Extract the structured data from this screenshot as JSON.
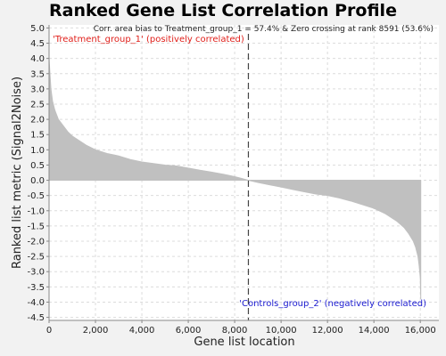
{
  "chart_data": {
    "type": "area",
    "title": "Ranked Gene List Correlation Profile",
    "xlabel": "Gene list location",
    "ylabel": "Ranked list metric (Signal2Noise)",
    "xlim": [
      0,
      16800
    ],
    "ylim": [
      -4.6,
      5.1
    ],
    "x_ticks": [
      0,
      2000,
      4000,
      6000,
      8000,
      10000,
      12000,
      14000,
      16000
    ],
    "x_tick_labels": [
      "0",
      "2,000",
      "4,000",
      "6,000",
      "8,000",
      "10,000",
      "12,000",
      "14,000",
      "16,000"
    ],
    "y_ticks": [
      5.0,
      4.5,
      4.0,
      3.5,
      3.0,
      2.5,
      2.0,
      1.5,
      1.0,
      0.5,
      0.0,
      -0.5,
      -1.0,
      -1.5,
      -2.0,
      -2.5,
      -3.0,
      -3.5,
      -4.0,
      -4.5
    ],
    "y_tick_labels": [
      "5.0",
      "4.5",
      "4.0",
      "3.5",
      "3.0",
      "2.5",
      "2.0",
      "1.5",
      "1.0",
      "0.5",
      "0.0",
      "-0.5",
      "-1.0",
      "-1.5",
      "-2.0",
      "-2.5",
      "-3.0",
      "-3.5",
      "-4.0",
      "-4.5"
    ],
    "grid": true,
    "fill_color": "#c0c0c0",
    "zero_crossing": 8591,
    "annotation": "Corr. area bias to Treatment_group_1 = 57.4% & Zero crossing at rank 8591 (53.6%)",
    "positive_label": "'Treatment_group_1' (positively correlated)",
    "negative_label": "'Controls_group_2' (negatively correlated)",
    "positive_color": "#e0201b",
    "negative_color": "#1a1ad0",
    "series": [
      {
        "x": [
          0,
          30,
          80,
          150,
          250,
          400,
          600,
          800,
          1000,
          1300,
          1600,
          2000,
          2500,
          3000,
          3500,
          4000,
          4500,
          5000,
          5500,
          6000,
          6500,
          7000,
          7500,
          8000,
          8300,
          8591,
          9000,
          9500,
          10000,
          10500,
          11000,
          11500,
          12000,
          12500,
          13000,
          13500,
          14000,
          14500,
          15000,
          15300,
          15500,
          15700,
          15800,
          15900,
          15950,
          16000,
          16020
        ],
        "y": [
          4.0,
          3.6,
          3.0,
          2.6,
          2.3,
          2.0,
          1.8,
          1.6,
          1.45,
          1.3,
          1.15,
          1.0,
          0.88,
          0.8,
          0.68,
          0.6,
          0.55,
          0.5,
          0.47,
          0.4,
          0.33,
          0.27,
          0.2,
          0.12,
          0.06,
          0.0,
          -0.07,
          -0.15,
          -0.22,
          -0.3,
          -0.38,
          -0.45,
          -0.5,
          -0.58,
          -0.68,
          -0.8,
          -0.92,
          -1.1,
          -1.35,
          -1.55,
          -1.75,
          -2.0,
          -2.2,
          -2.5,
          -2.8,
          -3.2,
          -3.9
        ]
      }
    ]
  }
}
